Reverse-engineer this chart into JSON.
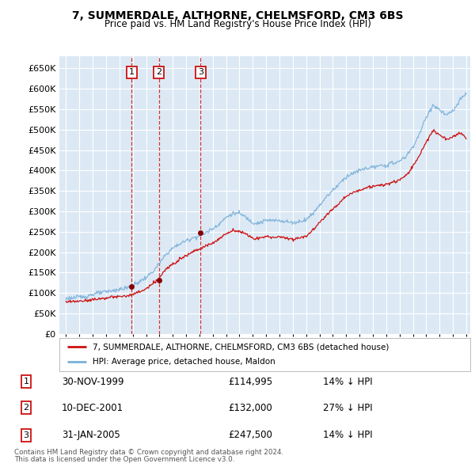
{
  "title": "7, SUMMERDALE, ALTHORNE, CHELMSFORD, CM3 6BS",
  "subtitle": "Price paid vs. HM Land Registry's House Price Index (HPI)",
  "ytick_values": [
    0,
    50000,
    100000,
    150000,
    200000,
    250000,
    300000,
    350000,
    400000,
    450000,
    500000,
    550000,
    600000,
    650000
  ],
  "background_color": "#dce9f5",
  "grid_color": "#ffffff",
  "hpi_line_color": "#7ab0d8",
  "price_line_color": "#cc1111",
  "sale_marker_color": "#880000",
  "vline_color": "#cc1111",
  "sales": [
    {
      "label": "1",
      "date_num": 1999.917,
      "price": 114995,
      "text": "30-NOV-1999",
      "amount": "£114,995",
      "pct": "14% ↓ HPI"
    },
    {
      "label": "2",
      "date_num": 2001.958,
      "price": 132000,
      "text": "10-DEC-2001",
      "amount": "£132,000",
      "pct": "27% ↓ HPI"
    },
    {
      "label": "3",
      "date_num": 2005.083,
      "price": 247500,
      "text": "31-JAN-2005",
      "amount": "£247,500",
      "pct": "14% ↓ HPI"
    }
  ],
  "legend_entries": [
    "7, SUMMERDALE, ALTHORNE, CHELMSFORD, CM3 6BS (detached house)",
    "HPI: Average price, detached house, Maldon"
  ],
  "footer_line1": "Contains HM Land Registry data © Crown copyright and database right 2024.",
  "footer_line2": "This data is licensed under the Open Government Licence v3.0.",
  "hpi_waypoints": [
    [
      1995.0,
      87000
    ],
    [
      1995.5,
      88000
    ],
    [
      1996.0,
      90000
    ],
    [
      1996.5,
      92000
    ],
    [
      1997.0,
      97000
    ],
    [
      1997.5,
      100000
    ],
    [
      1998.0,
      103000
    ],
    [
      1998.5,
      106000
    ],
    [
      1999.0,
      109000
    ],
    [
      1999.5,
      112000
    ],
    [
      2000.0,
      118000
    ],
    [
      2000.5,
      128000
    ],
    [
      2001.0,
      138000
    ],
    [
      2001.5,
      152000
    ],
    [
      2002.0,
      172000
    ],
    [
      2002.5,
      195000
    ],
    [
      2003.0,
      210000
    ],
    [
      2003.5,
      220000
    ],
    [
      2004.0,
      228000
    ],
    [
      2004.5,
      235000
    ],
    [
      2005.0,
      240000
    ],
    [
      2005.5,
      248000
    ],
    [
      2006.0,
      258000
    ],
    [
      2006.5,
      270000
    ],
    [
      2007.0,
      285000
    ],
    [
      2007.5,
      295000
    ],
    [
      2008.0,
      295000
    ],
    [
      2008.5,
      285000
    ],
    [
      2009.0,
      272000
    ],
    [
      2009.5,
      272000
    ],
    [
      2010.0,
      278000
    ],
    [
      2010.5,
      277000
    ],
    [
      2011.0,
      278000
    ],
    [
      2011.5,
      275000
    ],
    [
      2012.0,
      272000
    ],
    [
      2012.5,
      275000
    ],
    [
      2013.0,
      280000
    ],
    [
      2013.5,
      295000
    ],
    [
      2014.0,
      315000
    ],
    [
      2014.5,
      335000
    ],
    [
      2015.0,
      352000
    ],
    [
      2015.5,
      368000
    ],
    [
      2016.0,
      385000
    ],
    [
      2016.5,
      393000
    ],
    [
      2017.0,
      400000
    ],
    [
      2017.5,
      405000
    ],
    [
      2018.0,
      408000
    ],
    [
      2018.5,
      410000
    ],
    [
      2019.0,
      413000
    ],
    [
      2019.5,
      418000
    ],
    [
      2020.0,
      422000
    ],
    [
      2020.5,
      435000
    ],
    [
      2021.0,
      458000
    ],
    [
      2021.5,
      490000
    ],
    [
      2022.0,
      530000
    ],
    [
      2022.5,
      560000
    ],
    [
      2023.0,
      548000
    ],
    [
      2023.5,
      535000
    ],
    [
      2024.0,
      545000
    ],
    [
      2024.5,
      570000
    ],
    [
      2025.0,
      590000
    ]
  ],
  "price_waypoints": [
    [
      1995.0,
      78000
    ],
    [
      1995.5,
      79000
    ],
    [
      1996.0,
      80000
    ],
    [
      1996.5,
      82000
    ],
    [
      1997.0,
      84000
    ],
    [
      1997.5,
      86000
    ],
    [
      1998.0,
      88000
    ],
    [
      1998.5,
      90000
    ],
    [
      1999.0,
      91000
    ],
    [
      1999.5,
      93000
    ],
    [
      2000.0,
      96000
    ],
    [
      2000.5,
      103000
    ],
    [
      2001.0,
      110000
    ],
    [
      2001.5,
      122000
    ],
    [
      2002.0,
      138000
    ],
    [
      2002.5,
      158000
    ],
    [
      2003.0,
      172000
    ],
    [
      2003.5,
      183000
    ],
    [
      2004.0,
      192000
    ],
    [
      2004.5,
      202000
    ],
    [
      2005.0,
      208000
    ],
    [
      2005.5,
      215000
    ],
    [
      2006.0,
      223000
    ],
    [
      2006.5,
      233000
    ],
    [
      2007.0,
      245000
    ],
    [
      2007.5,
      253000
    ],
    [
      2008.0,
      252000
    ],
    [
      2008.5,
      244000
    ],
    [
      2009.0,
      234000
    ],
    [
      2009.5,
      234000
    ],
    [
      2010.0,
      238000
    ],
    [
      2010.5,
      237000
    ],
    [
      2011.0,
      237000
    ],
    [
      2011.5,
      235000
    ],
    [
      2012.0,
      232000
    ],
    [
      2012.5,
      235000
    ],
    [
      2013.0,
      240000
    ],
    [
      2013.5,
      254000
    ],
    [
      2014.0,
      272000
    ],
    [
      2014.5,
      291000
    ],
    [
      2015.0,
      306000
    ],
    [
      2015.5,
      321000
    ],
    [
      2016.0,
      337000
    ],
    [
      2016.5,
      345000
    ],
    [
      2017.0,
      352000
    ],
    [
      2017.5,
      358000
    ],
    [
      2018.0,
      361000
    ],
    [
      2018.5,
      363000
    ],
    [
      2019.0,
      366000
    ],
    [
      2019.5,
      371000
    ],
    [
      2020.0,
      376000
    ],
    [
      2020.5,
      388000
    ],
    [
      2021.0,
      410000
    ],
    [
      2021.5,
      437000
    ],
    [
      2022.0,
      470000
    ],
    [
      2022.5,
      497000
    ],
    [
      2023.0,
      487000
    ],
    [
      2023.5,
      476000
    ],
    [
      2024.0,
      483000
    ],
    [
      2024.5,
      492000
    ],
    [
      2025.0,
      480000
    ]
  ]
}
